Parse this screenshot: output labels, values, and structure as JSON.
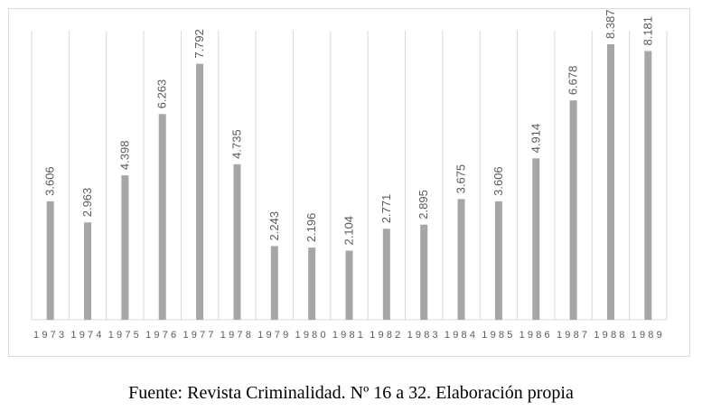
{
  "chart_data": {
    "type": "bar",
    "categories": [
      "1973",
      "1974",
      "1975",
      "1976",
      "1977",
      "1978",
      "1979",
      "1980",
      "1981",
      "1982",
      "1983",
      "1984",
      "1985",
      "1986",
      "1987",
      "1988",
      "1989"
    ],
    "series": [
      {
        "values": [
          3.606,
          2.963,
          4.398,
          6.263,
          7.792,
          4.735,
          2.243,
          2.196,
          2.104,
          2.771,
          2.895,
          3.675,
          3.606,
          4.914,
          6.678,
          8.387,
          8.181
        ],
        "labels": [
          "3.606",
          "2.963",
          "4.398",
          "6.263",
          "7.792",
          "4.735",
          "2.243",
          "2.196",
          "2.104",
          "2.771",
          "2.895",
          "3.675",
          "3.606",
          "4.914",
          "6.678",
          "8.387",
          "8.181"
        ]
      }
    ],
    "ylim": [
      0,
      8.8
    ],
    "grid": "vertical",
    "bar_color": "#a6a6a6",
    "grid_color": "#d9d9d9",
    "label_color": "#595959"
  },
  "caption": "Fuente: Revista Criminalidad. Nº 16 a 32. Elaboración propia"
}
